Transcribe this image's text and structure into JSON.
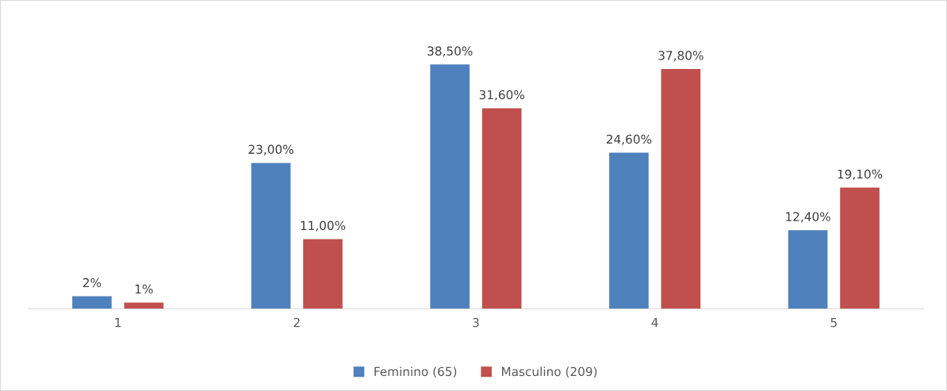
{
  "chart_data": {
    "type": "bar",
    "categories": [
      "1",
      "2",
      "3",
      "4",
      "5"
    ],
    "series": [
      {
        "name": "Feminino (65)",
        "color": "#4f81bd",
        "values": [
          2,
          23,
          38.5,
          24.6,
          12.4
        ],
        "value_labels": [
          "2%",
          "23,00%",
          "38,50%",
          "24,60%",
          "12,40%"
        ]
      },
      {
        "name": "Masculino (209)",
        "color": "#c0504d",
        "values": [
          1,
          11,
          31.6,
          37.8,
          19.1
        ],
        "value_labels": [
          "1%",
          "11,00%",
          "31,60%",
          "37,80%",
          "19,10%"
        ]
      }
    ],
    "legend": "bottom",
    "grid": false
  }
}
